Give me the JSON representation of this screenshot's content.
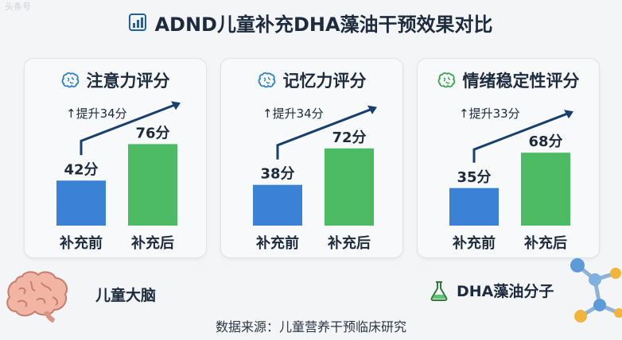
{
  "watermark": "头条号",
  "title": "ADND儿童补充DHA藻油干预效果对比",
  "source": "数据来源：儿童营养干预临床研究",
  "footer": {
    "brain_label": "儿童大脑",
    "dha_label": "DHA藻油分子"
  },
  "colors": {
    "before": "#3b82d6",
    "after": "#4dbb63",
    "arrow": "#17406e"
  },
  "chart_data": [
    {
      "type": "bar",
      "title": "注意力评分",
      "icon": "brain-icon",
      "icon_color": "#2f80c9",
      "categories": [
        "补充前",
        "补充后"
      ],
      "values": [
        42,
        76
      ],
      "value_labels": [
        "42分",
        "76分"
      ],
      "improvement_label": "↑提升34分",
      "ylim": [
        0,
        100
      ]
    },
    {
      "type": "bar",
      "title": "记忆力评分",
      "icon": "brain-icon",
      "icon_color": "#2f80c9",
      "categories": [
        "补充前",
        "补充后"
      ],
      "values": [
        38,
        72
      ],
      "value_labels": [
        "38分",
        "72分"
      ],
      "improvement_label": "↑提升34分",
      "ylim": [
        0,
        100
      ]
    },
    {
      "type": "bar",
      "title": "情绪稳定性评分",
      "icon": "brain-icon",
      "icon_color": "#3aa64f",
      "categories": [
        "补充前",
        "补充后"
      ],
      "values": [
        35,
        68
      ],
      "value_labels": [
        "35分",
        "68分"
      ],
      "improvement_label": "↑提升33分",
      "ylim": [
        0,
        100
      ]
    }
  ]
}
